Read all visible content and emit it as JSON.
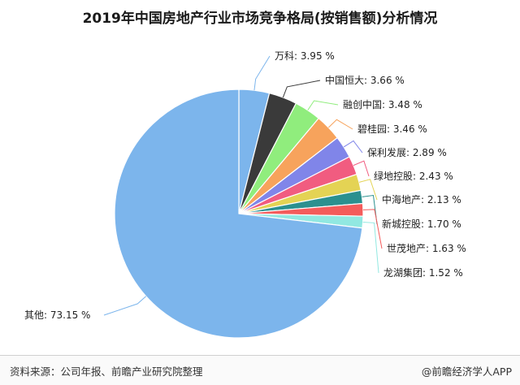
{
  "title": "2019年中国房地产行业市场竞争格局(按销售额)分析情况",
  "footer": {
    "source": "资料来源：公司年报、前瞻产业研究院整理",
    "brand": "@前瞻经济学人APP"
  },
  "chart_data": {
    "type": "pie",
    "slices": [
      {
        "name": "万科",
        "value": 3.95,
        "label": "万科: 3.95 %",
        "color": "#7cb5ec"
      },
      {
        "name": "中国恒大",
        "value": 3.66,
        "label": "中国恒大: 3.66 %",
        "color": "#3a3a3a"
      },
      {
        "name": "融创中国",
        "value": 3.48,
        "label": "融创中国: 3.48 %",
        "color": "#90ed7d"
      },
      {
        "name": "碧桂园",
        "value": 3.46,
        "label": "碧桂园: 3.46 %",
        "color": "#f7a35c"
      },
      {
        "name": "保利发展",
        "value": 2.89,
        "label": "保利发展: 2.89 %",
        "color": "#8085e9"
      },
      {
        "name": "绿地控股",
        "value": 2.43,
        "label": "绿地控股: 2.43 %",
        "color": "#f15c80"
      },
      {
        "name": "中海地产",
        "value": 2.13,
        "label": "中海地产: 2.13 %",
        "color": "#e4d354"
      },
      {
        "name": "新城控股",
        "value": 1.7,
        "label": "新城控股: 1.70 %",
        "color": "#2b908f"
      },
      {
        "name": "世茂地产",
        "value": 1.63,
        "label": "世茂地产: 1.63 %",
        "color": "#f45b5b"
      },
      {
        "name": "龙湖集团",
        "value": 1.52,
        "label": "龙湖集团: 1.52 %",
        "color": "#91e8e1"
      },
      {
        "name": "其他",
        "value": 73.15,
        "label": "其他: 73.15 %",
        "color": "#7cb5ec"
      }
    ]
  }
}
